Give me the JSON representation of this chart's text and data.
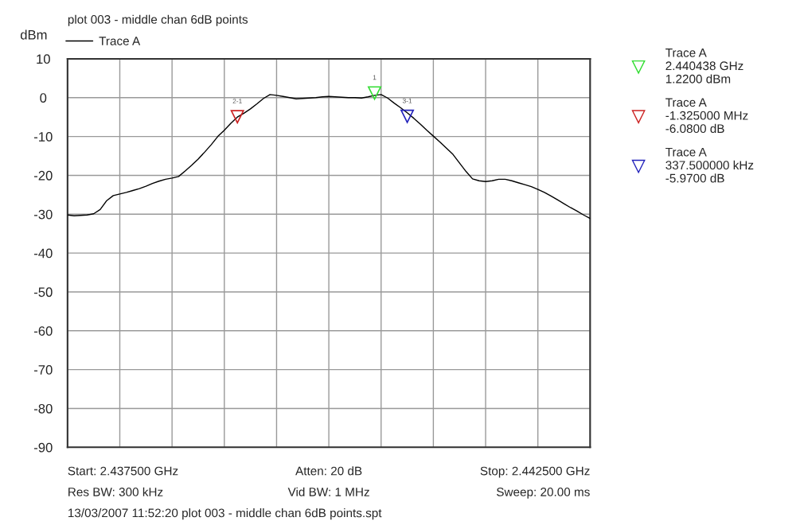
{
  "chart_data": {
    "type": "line",
    "title": "plot 003 - middle chan 6dB points",
    "ylabel": "dBm",
    "categories": [
      null,
      null,
      null,
      null,
      null,
      null,
      null,
      null,
      null,
      null,
      null,
      null,
      null,
      null,
      null,
      null,
      null,
      null,
      null,
      null,
      null,
      null,
      null,
      null,
      null,
      null,
      null,
      null,
      null,
      null,
      null,
      null,
      null,
      null,
      null,
      null,
      null,
      null,
      null,
      null,
      null,
      null,
      null,
      null,
      null,
      null,
      null,
      null,
      null,
      null,
      null,
      null,
      null,
      null,
      null,
      null,
      null,
      null,
      null,
      null,
      null,
      null,
      null,
      null,
      null,
      null,
      null,
      null,
      null,
      null,
      null,
      null,
      null,
      null,
      null,
      null,
      null,
      null,
      null,
      null,
      null
    ],
    "ylim": [
      -90,
      10
    ],
    "yticks": [
      10,
      0,
      -10,
      -20,
      -30,
      -40,
      -50,
      -60,
      -70,
      -80,
      -90
    ],
    "tick_labels": "y",
    "grid": true,
    "legend": "right",
    "series": [
      {
        "name": "Trace A",
        "color": "#000000",
        "values": [
          -30.2,
          -30.4,
          -30.3,
          -30.2,
          -29.9,
          -28.8,
          -26.5,
          -25.2,
          -24.8,
          -24.4,
          -23.9,
          -23.4,
          -22.8,
          -22.1,
          -21.5,
          -21.0,
          -20.7,
          -20.3,
          -18.9,
          -17.4,
          -15.8,
          -14.0,
          -12.1,
          -10.0,
          -8.4,
          -6.6,
          -5.0,
          -4.0,
          -2.9,
          -1.6,
          -0.2,
          0.8,
          0.6,
          0.3,
          0.0,
          -0.3,
          -0.2,
          -0.1,
          0.0,
          0.2,
          0.3,
          0.2,
          0.1,
          0.0,
          0.0,
          -0.1,
          0.2,
          0.6,
          0.8,
          -0.1,
          -1.4,
          -2.6,
          -3.9,
          -5.3,
          -6.8,
          -8.4,
          -9.9,
          -11.4,
          -13.0,
          -14.6,
          -16.8,
          -19.0,
          -20.9,
          -21.4,
          -21.6,
          -21.4,
          -21.0,
          -21.0,
          -21.4,
          -21.9,
          -22.4,
          -22.9,
          -23.6,
          -24.4,
          -25.3,
          -26.3,
          -27.3,
          -28.3,
          -29.2,
          -30.2,
          -31.1
        ]
      },
      {
        "name": "Trace A\n2.440438 GHz\n1.2200 dBm",
        "type": "scatter",
        "marker": "triangle",
        "color": "#33dd33",
        "values": [
          null,
          null,
          null,
          null,
          null,
          null,
          null,
          null,
          null,
          null,
          null,
          null,
          null,
          null,
          null,
          null,
          null,
          null,
          null,
          null,
          null,
          null,
          null,
          null,
          null,
          null,
          null,
          null,
          null,
          null,
          null,
          null,
          null,
          null,
          null,
          null,
          null,
          null,
          null,
          null,
          null,
          null,
          null,
          null,
          null,
          null,
          null,
          1.2,
          null,
          null,
          null,
          null,
          null,
          null,
          null,
          null,
          null,
          null,
          null,
          null,
          null,
          null,
          null,
          null,
          null,
          null,
          null,
          null,
          null,
          null,
          null,
          null,
          null,
          null,
          null,
          null,
          null,
          null,
          null,
          null,
          null
        ]
      },
      {
        "name": "Trace A\n-1.325000 MHz\n-6.0800 dB",
        "type": "scatter",
        "marker": "triangle",
        "color": "#cc2222",
        "values": [
          null,
          null,
          null,
          null,
          null,
          null,
          null,
          null,
          null,
          null,
          null,
          null,
          null,
          null,
          null,
          null,
          null,
          null,
          null,
          null,
          null,
          null,
          null,
          null,
          null,
          null,
          -4.9,
          null,
          null,
          null,
          null,
          null,
          null,
          null,
          null,
          null,
          null,
          null,
          null,
          null,
          null,
          null,
          null,
          null,
          null,
          null,
          null,
          null,
          null,
          null,
          null,
          null,
          null,
          null,
          null,
          null,
          null,
          null,
          null,
          null,
          null,
          null,
          null,
          null,
          null,
          null,
          null,
          null,
          null,
          null,
          null,
          null,
          null,
          null,
          null,
          null,
          null,
          null,
          null,
          null,
          null
        ]
      },
      {
        "name": "Trace A\n337.500000 kHz\n-5.9700 dB",
        "type": "scatter",
        "marker": "triangle",
        "color": "#2222bb",
        "values": [
          null,
          null,
          null,
          null,
          null,
          null,
          null,
          null,
          null,
          null,
          null,
          null,
          null,
          null,
          null,
          null,
          null,
          null,
          null,
          null,
          null,
          null,
          null,
          null,
          null,
          null,
          null,
          null,
          null,
          null,
          null,
          null,
          null,
          null,
          null,
          null,
          null,
          null,
          null,
          null,
          null,
          null,
          null,
          null,
          null,
          null,
          null,
          null,
          null,
          null,
          null,
          null,
          -4.8,
          null,
          null,
          null,
          null,
          null,
          null,
          null,
          null,
          null,
          null,
          null,
          null,
          null,
          null,
          null,
          null,
          null,
          null,
          null,
          null,
          null,
          null,
          null,
          null,
          null,
          null,
          null,
          null
        ]
      }
    ],
    "annotations": [
      "1",
      "2-1",
      "3-1",
      "Start: 2.437500 GHz",
      "Atten: 20 dB",
      "Stop: 2.442500 GHz",
      "Res BW: 300 kHz",
      "Vid BW: 1 MHz",
      "Sweep: 20.00 ms",
      "13/03/2007 11:52:20 plot 003 - middle chan 6dB points.spt"
    ]
  }
}
